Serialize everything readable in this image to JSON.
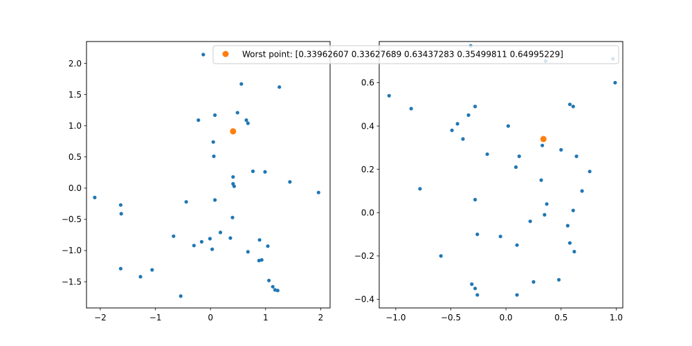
{
  "chart_data": [
    {
      "type": "scatter",
      "xlim": [
        -2.25,
        2.17
      ],
      "ylim": [
        -1.92,
        2.35
      ],
      "xticks": [
        -2,
        -1,
        0,
        1,
        2
      ],
      "xtick_labels": [
        "−2",
        "−1",
        "0",
        "1",
        "2"
      ],
      "yticks": [
        -1.5,
        -1.0,
        -0.5,
        0.0,
        0.5,
        1.0,
        1.5,
        2.0
      ],
      "ytick_labels": [
        "−1.5",
        "−1.0",
        "−0.5",
        "0.0",
        "0.5",
        "1.0",
        "1.5",
        "2.0"
      ],
      "grid": false,
      "series": [
        {
          "color": "#1f77b4",
          "points": [
            [
              -0.13,
              2.14
            ],
            [
              0.56,
              1.67
            ],
            [
              1.25,
              1.62
            ],
            [
              0.49,
              1.21
            ],
            [
              0.08,
              1.17
            ],
            [
              -0.22,
              1.09
            ],
            [
              0.65,
              1.09
            ],
            [
              0.68,
              1.04
            ],
            [
              0.05,
              0.74
            ],
            [
              0.06,
              0.51
            ],
            [
              0.77,
              0.27
            ],
            [
              0.99,
              0.26
            ],
            [
              0.41,
              0.18
            ],
            [
              0.41,
              0.07
            ],
            [
              0.43,
              0.03
            ],
            [
              1.44,
              0.1
            ],
            [
              1.96,
              -0.07
            ],
            [
              -2.1,
              -0.15
            ],
            [
              -1.63,
              -0.27
            ],
            [
              -0.44,
              -0.22
            ],
            [
              0.08,
              -0.19
            ],
            [
              -1.62,
              -0.41
            ],
            [
              0.4,
              -0.47
            ],
            [
              0.18,
              -0.71
            ],
            [
              -0.67,
              -0.77
            ],
            [
              0.36,
              -0.8
            ],
            [
              -0.01,
              -0.81
            ],
            [
              -0.16,
              -0.86
            ],
            [
              -0.3,
              -0.92
            ],
            [
              0.03,
              -0.98
            ],
            [
              0.89,
              -0.83
            ],
            [
              1.04,
              -0.93
            ],
            [
              0.68,
              -1.02
            ],
            [
              0.88,
              -1.16
            ],
            [
              0.93,
              -1.15
            ],
            [
              -1.63,
              -1.29
            ],
            [
              -1.06,
              -1.31
            ],
            [
              -1.27,
              -1.42
            ],
            [
              1.06,
              -1.48
            ],
            [
              1.13,
              -1.58
            ],
            [
              1.17,
              -1.63
            ],
            [
              1.22,
              -1.64
            ],
            [
              -0.54,
              -1.73
            ]
          ]
        },
        {
          "color": "#ff7f0e",
          "label": "Worst point: [0.33962607 0.33627689 0.63437283 0.35499811 0.64995229]",
          "points": [
            [
              0.41,
              0.91
            ]
          ]
        }
      ],
      "legend": {
        "location": "upper right",
        "text": "Worst point: [0.33962607 0.33627689 0.63437283 0.35499811 0.64995229]"
      }
    },
    {
      "type": "scatter",
      "xlim": [
        -1.15,
        1.06
      ],
      "ylim": [
        -0.44,
        0.79
      ],
      "xticks": [
        -1.0,
        -0.5,
        0.0,
        0.5,
        1.0
      ],
      "xtick_labels": [
        "−1.0",
        "−0.5",
        "0.0",
        "0.5",
        "1.0"
      ],
      "yticks": [
        -0.4,
        -0.2,
        0.0,
        0.2,
        0.4,
        0.6
      ],
      "ytick_labels": [
        "−0.4",
        "−0.2",
        "0.0",
        "0.2",
        "0.4",
        "0.6"
      ],
      "grid": false,
      "series": [
        {
          "color": "#1f77b4",
          "points": [
            [
              -0.32,
              0.77
            ],
            [
              0.97,
              0.71
            ],
            [
              0.36,
              0.7
            ],
            [
              0.99,
              0.6
            ],
            [
              -1.06,
              0.54
            ],
            [
              -0.86,
              0.48
            ],
            [
              0.58,
              0.5
            ],
            [
              0.61,
              0.49
            ],
            [
              -0.28,
              0.49
            ],
            [
              -0.34,
              0.45
            ],
            [
              -0.44,
              0.41
            ],
            [
              -0.49,
              0.38
            ],
            [
              0.02,
              0.4
            ],
            [
              -0.39,
              0.34
            ],
            [
              0.33,
              0.31
            ],
            [
              0.5,
              0.29
            ],
            [
              -0.17,
              0.27
            ],
            [
              0.12,
              0.26
            ],
            [
              0.64,
              0.26
            ],
            [
              0.09,
              0.21
            ],
            [
              0.76,
              0.19
            ],
            [
              0.32,
              0.15
            ],
            [
              -0.78,
              0.11
            ],
            [
              0.69,
              0.1
            ],
            [
              -0.28,
              0.06
            ],
            [
              0.37,
              0.04
            ],
            [
              0.61,
              0.01
            ],
            [
              0.35,
              -0.01
            ],
            [
              0.22,
              -0.04
            ],
            [
              0.56,
              -0.06
            ],
            [
              -0.26,
              -0.1
            ],
            [
              -0.05,
              -0.11
            ],
            [
              0.1,
              -0.15
            ],
            [
              0.58,
              -0.14
            ],
            [
              0.62,
              -0.18
            ],
            [
              -0.59,
              -0.2
            ],
            [
              0.25,
              -0.32
            ],
            [
              0.48,
              -0.31
            ],
            [
              -0.31,
              -0.33
            ],
            [
              -0.28,
              -0.35
            ],
            [
              -0.26,
              -0.38
            ],
            [
              0.1,
              -0.38
            ]
          ]
        },
        {
          "color": "#ff7f0e",
          "points": [
            [
              0.34,
              0.34
            ]
          ]
        }
      ]
    }
  ]
}
